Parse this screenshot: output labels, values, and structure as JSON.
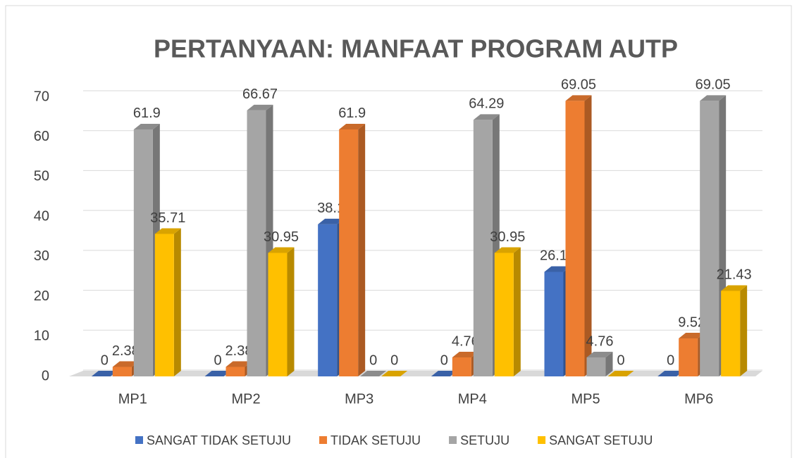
{
  "chart_data": {
    "type": "bar3d",
    "title": "PERTANYAAN: MANFAAT PROGRAM AUTP",
    "categories": [
      "MP1",
      "MP2",
      "MP3",
      "MP4",
      "MP5",
      "MP6"
    ],
    "series": [
      {
        "name": "SANGAT TIDAK SETUJU",
        "color": "#4472c4",
        "values": [
          0,
          0,
          38.1,
          0,
          26.19,
          0
        ]
      },
      {
        "name": "TIDAK SETUJU",
        "color": "#ed7d31",
        "values": [
          2.38,
          2.38,
          61.9,
          4.76,
          69.05,
          9.52
        ]
      },
      {
        "name": "SETUJU",
        "color": "#a5a5a5",
        "values": [
          61.9,
          66.67,
          0,
          64.29,
          4.76,
          69.05
        ]
      },
      {
        "name": "SANGAT SETUJU",
        "color": "#ffc000",
        "values": [
          35.71,
          30.95,
          0,
          30.95,
          0,
          21.43
        ]
      }
    ],
    "ylim": [
      0,
      70
    ],
    "yticks": [
      0,
      10,
      20,
      30,
      40,
      50,
      60,
      70
    ],
    "grid": true,
    "legend": "bottom"
  }
}
